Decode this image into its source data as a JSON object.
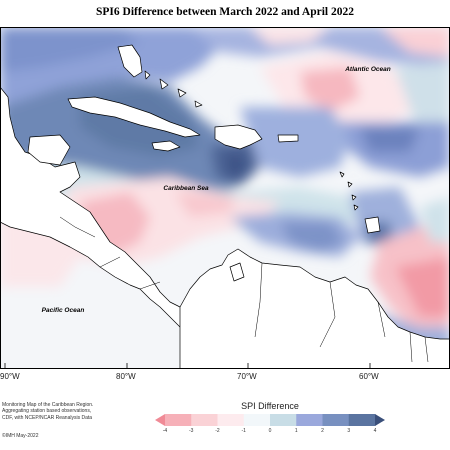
{
  "title": "SPI6 Difference between March 2022 and April 2022",
  "labels": {
    "atlantic": "Atlantic Ocean",
    "caribbean": "Caribbean Sea",
    "pacific": "Pacific Ocean"
  },
  "longitudes": [
    "90°W",
    "80°W",
    "70°W",
    "60°W"
  ],
  "credit_lines": [
    "Monitoring Map of the Caribbean Region.",
    "Aggregating station based observations,",
    "CDF, with NCEP/NCAR Reanalysis Data"
  ],
  "copyright": "©IMH May-2022",
  "legend": {
    "title": "SPI Difference",
    "ticks": [
      "-4",
      "-3",
      "-2",
      "-1",
      "0",
      "1",
      "2",
      "3",
      "4"
    ],
    "colors": [
      "#f08a96",
      "#f6b0b8",
      "#fad2d6",
      "#fdebee",
      "#f2f7fa",
      "#c8dde6",
      "#9aa8dc",
      "#7890c0",
      "#5a74a0",
      "#3a4f7a"
    ]
  }
}
